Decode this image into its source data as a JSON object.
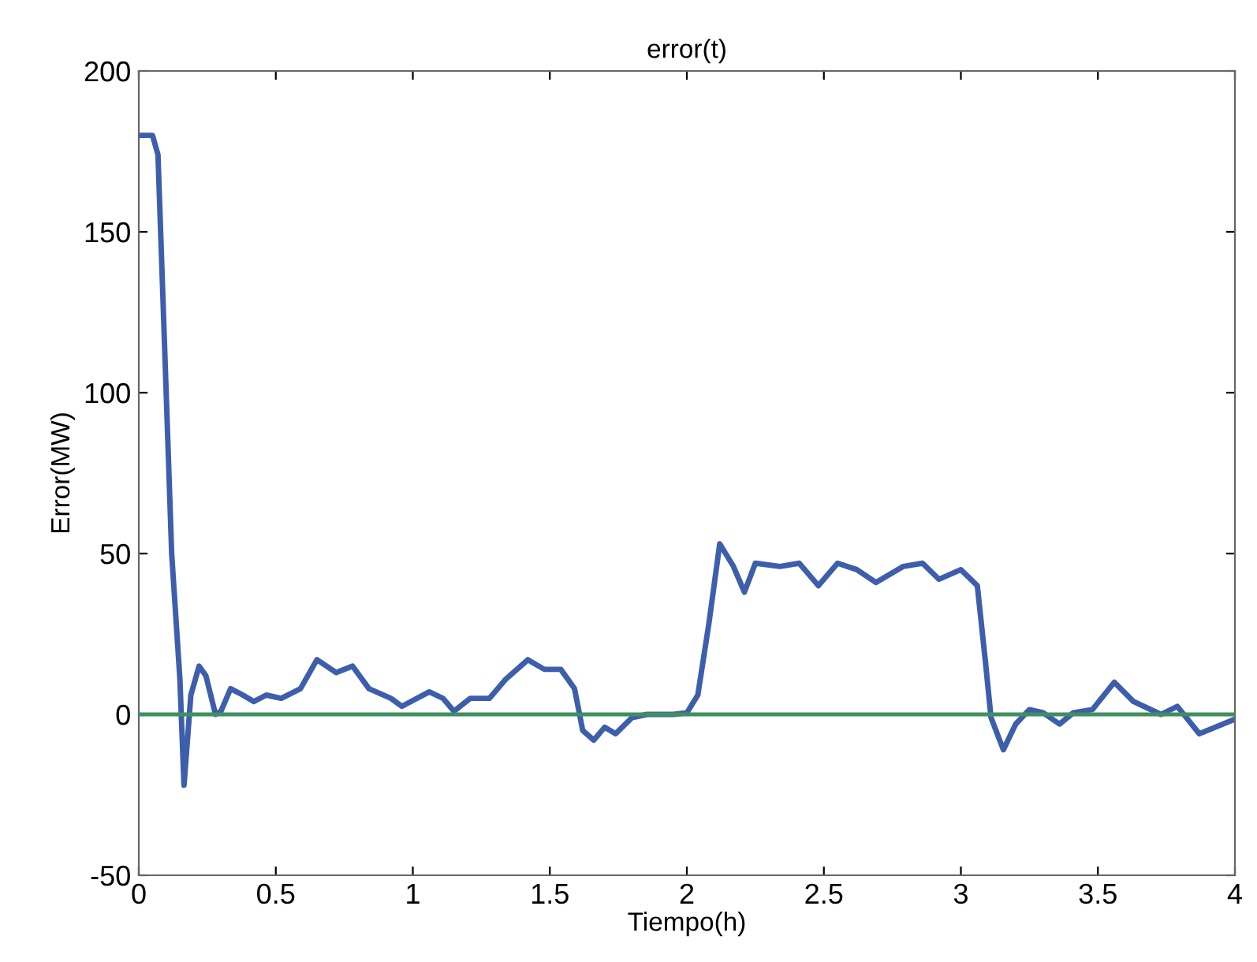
{
  "chart_data": {
    "type": "line",
    "title": "error(t)",
    "xlabel": "Tiempo(h)",
    "ylabel": "Error(MW)",
    "xlim": [
      0,
      4
    ],
    "ylim": [
      -50,
      200
    ],
    "xticks": [
      0,
      0.5,
      1,
      1.5,
      2,
      2.5,
      3,
      3.5,
      4
    ],
    "yticks": [
      -50,
      0,
      50,
      100,
      150,
      200
    ],
    "grid": false,
    "legend": false,
    "line_style": "solid",
    "marker": "none",
    "series": [
      {
        "color": "#3d5eac",
        "x": [
          0,
          0.05,
          0.07,
          0.1,
          0.12,
          0.15,
          0.165,
          0.19,
          0.22,
          0.245,
          0.28,
          0.3,
          0.335,
          0.38,
          0.42,
          0.465,
          0.52,
          0.59,
          0.65,
          0.72,
          0.78,
          0.84,
          0.92,
          0.96,
          1.06,
          1.11,
          1.15,
          1.21,
          1.28,
          1.34,
          1.42,
          1.48,
          1.54,
          1.59,
          1.62,
          1.66,
          1.7,
          1.74,
          1.8,
          1.855,
          1.95,
          2.0,
          2.04,
          2.08,
          2.12,
          2.17,
          2.21,
          2.25,
          2.34,
          2.41,
          2.48,
          2.55,
          2.62,
          2.69,
          2.79,
          2.86,
          2.92,
          3.0,
          3.06,
          3.09,
          3.11,
          3.155,
          3.2,
          3.25,
          3.3,
          3.36,
          3.41,
          3.48,
          3.56,
          3.63,
          3.73,
          3.79,
          3.87,
          4.0
        ],
        "values": [
          180,
          180,
          174,
          100,
          50,
          11,
          -22,
          6,
          15,
          12,
          0,
          1,
          8,
          6,
          4,
          6,
          5,
          8,
          17,
          13,
          15,
          8,
          5,
          2.5,
          7,
          5,
          1,
          5,
          5,
          11,
          17,
          14,
          14,
          8,
          -5,
          -8,
          -4,
          -6,
          -1,
          0,
          0,
          0.5,
          6,
          28,
          53,
          46,
          38,
          47,
          46,
          47,
          40,
          47,
          45,
          41,
          46,
          47,
          42,
          45,
          40,
          16,
          -1,
          -11,
          -3,
          1.5,
          0.5,
          -3,
          0.5,
          1.5,
          10,
          4,
          0,
          2.5,
          -6,
          -1.5
        ]
      }
    ],
    "ref_lines": [
      {
        "axis": "y",
        "value": 0,
        "color": "#3f8f5f",
        "line_style": "solid"
      }
    ]
  }
}
